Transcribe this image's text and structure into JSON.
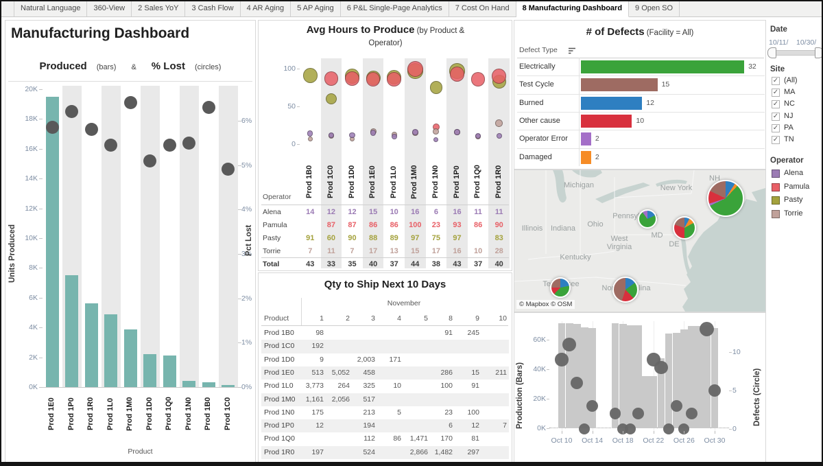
{
  "window": {
    "tabs": [
      {
        "label": "Natural Language",
        "active": false
      },
      {
        "label": "360-View",
        "active": false
      },
      {
        "label": "2 Sales YoY",
        "active": false
      },
      {
        "label": "3 Cash Flow",
        "active": false
      },
      {
        "label": "4 AR Aging",
        "active": false
      },
      {
        "label": "5 AP Aging",
        "active": false
      },
      {
        "label": "6 P&L Single-Page Analytics",
        "active": false
      },
      {
        "label": "7 Cost On Hand",
        "active": false
      },
      {
        "label": "8 Manufacturing Dashboard",
        "active": true
      },
      {
        "label": "9 Open SO",
        "active": false
      }
    ]
  },
  "left_panel": {
    "title": "Manufacturing Dashboard",
    "subtitle": {
      "produced": "Produced",
      "bars": "(bars)",
      "amp": "&",
      "lost": "% Lost",
      "circles": "(circles)"
    }
  },
  "sidebar": {
    "date_filter": {
      "label": "Date",
      "start_label": "10/11/",
      "end_label": "10/30/"
    },
    "site_filter": {
      "label": "Site",
      "options": [
        {
          "label": "(All)",
          "checked": true
        },
        {
          "label": "MA",
          "checked": true
        },
        {
          "label": "NC",
          "checked": true
        },
        {
          "label": "NJ",
          "checked": true
        },
        {
          "label": "PA",
          "checked": true
        },
        {
          "label": "TN",
          "checked": true
        }
      ]
    },
    "operator_legend": {
      "label": "Operator",
      "items": [
        {
          "name": "Alena",
          "color": "#9b7bb4"
        },
        {
          "name": "Pamula",
          "color": "#e85f66"
        },
        {
          "name": "Pasty",
          "color": "#a4a23d"
        },
        {
          "name": "Torrie",
          "color": "#c0a19a"
        }
      ]
    }
  },
  "palette": {
    "bar_teal": "#77b5ae",
    "mark_gray": "#595959",
    "band_gray": "#e9e9e9",
    "tick_label": "#7d8da3"
  },
  "chart_data": [
    {
      "id": "produced-vs-lost",
      "type": "bar+circle",
      "categories": [
        "Prod 1E0",
        "Prod 1P0",
        "Prod 1R0",
        "Prod 1L0",
        "Prod 1M0",
        "Prod 1D0",
        "Prod 1Q0",
        "Prod 1N0",
        "Prod 1B0",
        "Prod 1C0"
      ],
      "bars": {
        "name": "Units Produced",
        "color": "#77b5ae",
        "values": [
          19500,
          7500,
          5600,
          4900,
          3850,
          2200,
          2100,
          400,
          300,
          150
        ]
      },
      "circles": {
        "name": "Pct Lost",
        "color": "#595959",
        "values_pct": [
          5.85,
          6.2,
          5.8,
          5.45,
          6.4,
          5.1,
          5.45,
          5.5,
          6.3,
          4.9
        ]
      },
      "y_left": {
        "label": "Units Produced",
        "ticks": [
          "20K",
          "18K",
          "16K",
          "14K",
          "12K",
          "10K",
          "8K",
          "6K",
          "4K",
          "2K",
          "0K"
        ],
        "max": 20000
      },
      "y_right": {
        "label": "Pct Lost",
        "ticks": [
          "6%",
          "5%",
          "4%",
          "3%",
          "2%",
          "1%",
          "0%"
        ]
      },
      "x_label": "Product"
    },
    {
      "id": "avg-hours",
      "type": "scatter",
      "title": "Avg Hours to Produce",
      "title_sub1": "(by Product &",
      "title_sub2": "Operator)",
      "categories": [
        "Prod 1B0",
        "Prod 1C0",
        "Prod 1D0",
        "Prod 1E0",
        "Prod 1L0",
        "Prod 1M0",
        "Prod 1N0",
        "Prod 1P0",
        "Prod 1Q0",
        "Prod 1R0"
      ],
      "y_ticks": [
        "0",
        "50",
        "100"
      ],
      "ylim": [
        0,
        115
      ],
      "row_header": "Operator",
      "operators": [
        {
          "name": "Alena",
          "values": [
            14,
            12,
            12,
            15,
            10,
            16,
            6,
            16,
            11,
            11
          ]
        },
        {
          "name": "Pamula",
          "values": [
            null,
            87,
            87,
            86,
            86,
            100,
            23,
            93,
            86,
            90
          ]
        },
        {
          "name": "Pasty",
          "values": [
            91,
            60,
            90,
            88,
            89,
            97,
            75,
            97,
            null,
            83
          ]
        },
        {
          "name": "Torrie",
          "values": [
            7,
            11,
            7,
            17,
            13,
            15,
            17,
            16,
            10,
            28
          ]
        }
      ],
      "total": {
        "label": "Total",
        "values": [
          43,
          33,
          35,
          40,
          37,
          44,
          38,
          43,
          37,
          40
        ]
      }
    },
    {
      "id": "qty-to-ship",
      "type": "table",
      "title": "Qty to Ship Next 10 Days",
      "month": "November",
      "row_header": "Product",
      "day_columns": [
        "1",
        "2",
        "3",
        "4",
        "5",
        "8",
        "9",
        "10"
      ],
      "rows": [
        {
          "product": "Prod 1B0",
          "values": [
            "98",
            "",
            "",
            "",
            "",
            "91",
            "245",
            ""
          ]
        },
        {
          "product": "Prod 1C0",
          "values": [
            "192",
            "",
            "",
            "",
            "",
            "",
            "",
            ""
          ]
        },
        {
          "product": "Prod 1D0",
          "values": [
            "9",
            "",
            "2,003",
            "171",
            "",
            "",
            "",
            ""
          ]
        },
        {
          "product": "Prod 1E0",
          "values": [
            "513",
            "5,052",
            "458",
            "",
            "",
            "286",
            "15",
            "211"
          ]
        },
        {
          "product": "Prod 1L0",
          "values": [
            "3,773",
            "264",
            "325",
            "10",
            "",
            "100",
            "91",
            ""
          ]
        },
        {
          "product": "Prod 1M0",
          "values": [
            "1,161",
            "2,056",
            "517",
            "",
            "",
            "",
            "",
            ""
          ]
        },
        {
          "product": "Prod 1N0",
          "values": [
            "175",
            "",
            "213",
            "5",
            "",
            "23",
            "100",
            ""
          ]
        },
        {
          "product": "Prod 1P0",
          "values": [
            "12",
            "",
            "194",
            "",
            "",
            "6",
            "12",
            "7"
          ]
        },
        {
          "product": "Prod 1Q0",
          "values": [
            "",
            "",
            "112",
            "86",
            "1,471",
            "170",
            "81",
            ""
          ]
        },
        {
          "product": "Prod 1R0",
          "values": [
            "197",
            "",
            "524",
            "",
            "2,866",
            "1,482",
            "297",
            ""
          ]
        }
      ]
    },
    {
      "id": "defect-counts",
      "type": "bar",
      "title": "# of Defects",
      "title_sub": "(Facility = All)",
      "column_label": "Defect Type",
      "sort": "descending",
      "categories": [
        "Electrically",
        "Test Cycle",
        "Burned",
        "Other cause",
        "Operator Error",
        "Damaged"
      ],
      "values": [
        32,
        15,
        12,
        10,
        2,
        2
      ],
      "colors": [
        "#3aa33a",
        "#9e6b62",
        "#2e7fc1",
        "#d8303d",
        "#a46fc8",
        "#f68c26"
      ],
      "xlim": [
        0,
        34
      ]
    },
    {
      "id": "defect-map",
      "type": "map_pies",
      "attribution": "© Mapbox © OSM",
      "state_labels": [
        {
          "text": "Michigan",
          "x": 94,
          "y": 22
        },
        {
          "text": "New York",
          "x": 236,
          "y": 26
        },
        {
          "text": "NH",
          "x": 292,
          "y": 12
        },
        {
          "text": "Pennsylvania",
          "x": 176,
          "y": 67
        },
        {
          "text": "Ohio",
          "x": 118,
          "y": 79
        },
        {
          "text": "Indiana",
          "x": 71,
          "y": 85
        },
        {
          "text": "Illinois",
          "x": 26,
          "y": 85
        },
        {
          "text": "West Virginia",
          "x": 153,
          "y": 100,
          "wrap": true
        },
        {
          "text": "Kentucky",
          "x": 89,
          "y": 127
        },
        {
          "text": "MD",
          "x": 208,
          "y": 95
        },
        {
          "text": "DE",
          "x": 233,
          "y": 108
        },
        {
          "text": "Tennessee",
          "x": 68,
          "y": 166
        },
        {
          "text": "North Carolina",
          "x": 163,
          "y": 172
        }
      ],
      "pies": [
        {
          "site": "MA",
          "x": 308,
          "y": 41,
          "r": 27,
          "slices": [
            {
              "defect": "Burned",
              "color": "#2e7fc1",
              "pct": 9
            },
            {
              "defect": "Damaged",
              "color": "#f68c26",
              "pct": 3
            },
            {
              "defect": "Electrically",
              "color": "#3aa33a",
              "pct": 56
            },
            {
              "defect": "Operator Error",
              "color": "#a46fc8",
              "pct": 2
            },
            {
              "defect": "Other cause",
              "color": "#d8303d",
              "pct": 12
            },
            {
              "defect": "Test Cycle",
              "color": "#9e6b62",
              "pct": 18
            }
          ]
        },
        {
          "site": "PA",
          "x": 194,
          "y": 71,
          "r": 14,
          "slices": [
            {
              "defect": "Burned",
              "color": "#2e7fc1",
              "pct": 18
            },
            {
              "defect": "Electrically",
              "color": "#3aa33a",
              "pct": 72
            },
            {
              "defect": "Operator Error",
              "color": "#a46fc8",
              "pct": 10
            }
          ]
        },
        {
          "site": "NJ",
          "x": 248,
          "y": 84,
          "r": 17,
          "slices": [
            {
              "defect": "Burned",
              "color": "#2e7fc1",
              "pct": 8
            },
            {
              "defect": "Damaged",
              "color": "#f68c26",
              "pct": 9
            },
            {
              "defect": "Electrically",
              "color": "#3aa33a",
              "pct": 33
            },
            {
              "defect": "Other cause",
              "color": "#d8303d",
              "pct": 30
            },
            {
              "defect": "Test Cycle",
              "color": "#9e6b62",
              "pct": 20
            }
          ]
        },
        {
          "site": "TN",
          "x": 67,
          "y": 171,
          "r": 15,
          "slices": [
            {
              "defect": "Burned",
              "color": "#2e7fc1",
              "pct": 22
            },
            {
              "defect": "Electrically",
              "color": "#3aa33a",
              "pct": 40
            },
            {
              "defect": "Other cause",
              "color": "#d8303d",
              "pct": 13
            },
            {
              "defect": "Test Cycle",
              "color": "#9e6b62",
              "pct": 25
            }
          ]
        },
        {
          "site": "NC",
          "x": 162,
          "y": 174,
          "r": 19,
          "slices": [
            {
              "defect": "Burned",
              "color": "#2e7fc1",
              "pct": 15
            },
            {
              "defect": "Electrically",
              "color": "#3aa33a",
              "pct": 23
            },
            {
              "defect": "Other cause",
              "color": "#d8303d",
              "pct": 17
            },
            {
              "defect": "Test Cycle",
              "color": "#9e6b62",
              "pct": 45
            }
          ]
        }
      ]
    },
    {
      "id": "daily-production-defects",
      "type": "bar+circle",
      "x_ticks": [
        "Oct 10",
        "Oct 14",
        "Oct 18",
        "Oct 22",
        "Oct 26",
        "Oct 30"
      ],
      "y_left": {
        "label": "Production (Bars)",
        "ticks": [
          "0K",
          "20K",
          "40K",
          "60K"
        ],
        "max": 75000
      },
      "y_right": {
        "label": "Defects (Circle)",
        "ticks": [
          "0",
          "5",
          "10"
        ],
        "max": 13.5
      },
      "bar_color": "#c9c9c9",
      "circle_color": "#666666",
      "production": [
        {
          "date": "Oct 10",
          "value": 71000
        },
        {
          "date": "Oct 11",
          "value": 71000
        },
        {
          "date": "Oct 12",
          "value": 70500
        },
        {
          "date": "Oct 13",
          "value": 68500
        },
        {
          "date": "Oct 14",
          "value": 68000
        },
        {
          "date": "Oct 17",
          "value": 71000
        },
        {
          "date": "Oct 18",
          "value": 70500
        },
        {
          "date": "Oct 19",
          "value": 70000
        },
        {
          "date": "Oct 20",
          "value": 70000
        },
        {
          "date": "Oct 21",
          "value": 35500
        },
        {
          "date": "Oct 22",
          "value": 35500
        },
        {
          "date": "Oct 23",
          "value": 47500
        },
        {
          "date": "Oct 24",
          "value": 64000
        },
        {
          "date": "Oct 25",
          "value": 64500
        },
        {
          "date": "Oct 26",
          "value": 67000
        },
        {
          "date": "Oct 27",
          "value": 69500
        },
        {
          "date": "Oct 28",
          "value": 69500
        },
        {
          "date": "Oct 29",
          "value": 70000
        },
        {
          "date": "Oct 30",
          "value": 68000
        }
      ],
      "defects": [
        {
          "date": "Oct 10",
          "value": 9
        },
        {
          "date": "Oct 11",
          "value": 11
        },
        {
          "date": "Oct 12",
          "value": 6
        },
        {
          "date": "Oct 13",
          "value": 0
        },
        {
          "date": "Oct 14",
          "value": 3
        },
        {
          "date": "Oct 17",
          "value": 2
        },
        {
          "date": "Oct 18",
          "value": 0
        },
        {
          "date": "Oct 19",
          "value": 0
        },
        {
          "date": "Oct 20",
          "value": 2
        },
        {
          "date": "Oct 22",
          "value": 9
        },
        {
          "date": "Oct 23",
          "value": 8
        },
        {
          "date": "Oct 24",
          "value": 0
        },
        {
          "date": "Oct 25",
          "value": 3
        },
        {
          "date": "Oct 26",
          "value": 0
        },
        {
          "date": "Oct 27",
          "value": 2
        },
        {
          "date": "Oct 29",
          "value": 13
        },
        {
          "date": "Oct 30",
          "value": 5
        }
      ]
    }
  ]
}
